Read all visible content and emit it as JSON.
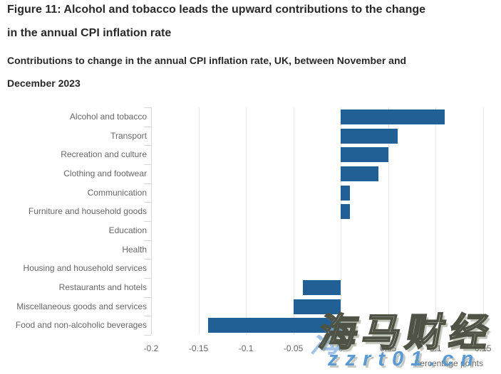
{
  "figure": {
    "title": "Figure 11: Alcohol and tobacco leads the upward contributions to the change in the annual CPI inflation rate",
    "subtitle": "Contributions to change in the annual CPI inflation rate, UK, between November and December 2023"
  },
  "chart_data": {
    "type": "bar",
    "orientation": "horizontal",
    "xlabel": "Percentage points",
    "categories": [
      "Alcohol and tobacco",
      "Transport",
      "Recreation and culture",
      "Clothing and footwear",
      "Communication",
      "Furniture and household goods",
      "Education",
      "Health",
      "Housing and household services",
      "Restaurants and hotels",
      "Miscellaneous goods and services",
      "Food and non-alcoholic beverages"
    ],
    "values": [
      0.11,
      0.06,
      0.05,
      0.04,
      0.01,
      0.01,
      0,
      0,
      0,
      -0.04,
      -0.05,
      -0.14
    ],
    "xlim": [
      -0.2,
      0.16
    ],
    "xticks": [
      -0.2,
      -0.15,
      -0.1,
      -0.05,
      0,
      0.05,
      0.1,
      0.15
    ],
    "xtick_labels": [
      "-0.2",
      "-0.15",
      "-0.1",
      "-0.05",
      "0",
      "0.05",
      "0.1",
      "0.15"
    ],
    "grid": true,
    "legend": false,
    "bar_color": "#206095",
    "gridline_color": "#e6e6e6",
    "axis_line_color": "#ccd6eb",
    "label_color": "#666666"
  },
  "watermark": {
    "main_text": "海马财经",
    "url_text": "zzrt01.cn",
    "fragment": "海",
    "url_color": "#5b9bd5"
  }
}
